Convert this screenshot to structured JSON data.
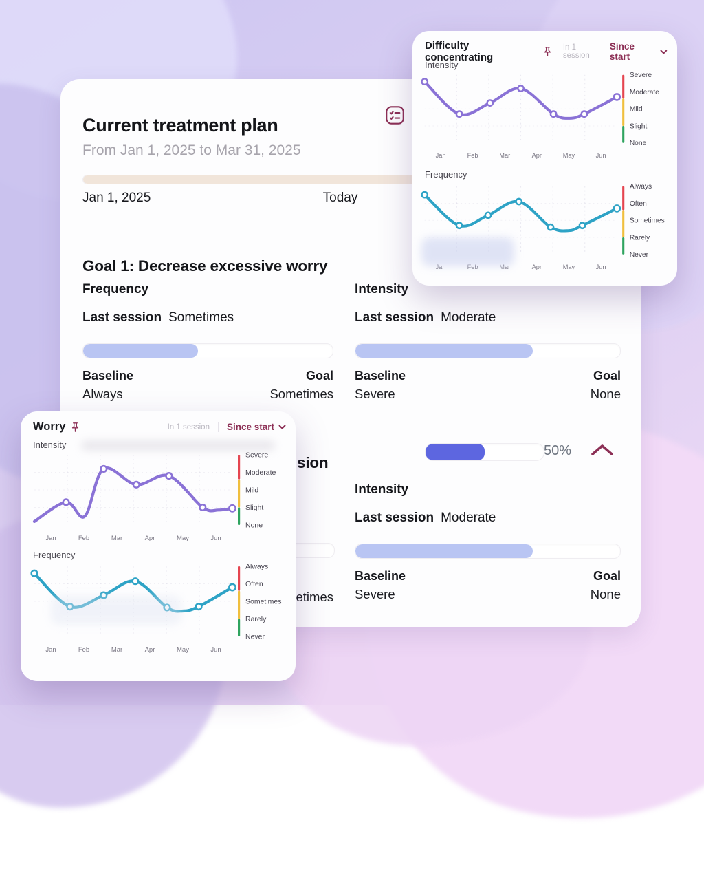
{
  "colors": {
    "accent_maroon": "#8C2F55",
    "line_purple": "#8A72D6",
    "line_teal": "#2EA3C6",
    "progress_periwinkle": "#B9C5F3",
    "progress_indigo": "#5D66E0",
    "timeline_beige": "#F1E5DA",
    "scale_red": "#E54550",
    "scale_yellow": "#F0BF3E",
    "scale_green": "#2FA45F"
  },
  "main_card": {
    "title": "Current treatment plan",
    "date_range": "From Jan 1, 2025 to  Mar 31, 2025",
    "timeline": {
      "progress_pct": 80,
      "start_label": "Jan 1, 2025",
      "today_label": "Today"
    },
    "goal1": {
      "heading": "Goal 1: Decrease excessive worry",
      "frequency": {
        "label": "Frequency",
        "last_session_label": "Last session",
        "last_session_value": "Sometimes",
        "progress_pct": 46,
        "baseline_label": "Baseline",
        "baseline_value": "Always",
        "goal_label": "Goal",
        "goal_value": "Sometimes"
      },
      "intensity": {
        "label": "Intensity",
        "last_session_label": "Last session",
        "last_session_value": "Moderate",
        "progress_pct": 67,
        "baseline_label": "Baseline",
        "baseline_value": "Severe",
        "goal_label": "Goal",
        "goal_value": "None"
      }
    },
    "goal2": {
      "heading_visible_fragment": "sion",
      "progress_pct": 50,
      "progress_label": "50%",
      "frequency_partial": {
        "progress_pct": 46,
        "goal_value": "Sometimes"
      },
      "intensity": {
        "label": "Intensity",
        "last_session_label": "Last session",
        "last_session_value": "Moderate",
        "progress_pct": 67,
        "baseline_label": "Baseline",
        "baseline_value": "Severe",
        "goal_label": "Goal",
        "goal_value": "None"
      }
    }
  },
  "worry_card": {
    "title": "Worry",
    "session_note": "In 1 session",
    "range_selector": "Since start",
    "intensity_label": "Intensity",
    "frequency_label": "Frequency"
  },
  "difficulty_card": {
    "title": "Difficulty concentrating",
    "session_note": "In 1 session",
    "range_selector": "Since start",
    "intensity_label": "Intensity",
    "frequency_label": "Frequency"
  },
  "chart_data": [
    {
      "id": "worry-intensity",
      "type": "line",
      "title": "Worry — Intensity",
      "color": "#8A72D6",
      "x_categories": [
        "Jan",
        "Feb",
        "Mar",
        "Apr",
        "May",
        "Jun"
      ],
      "y_levels": [
        "Severe",
        "Moderate",
        "Mild",
        "Slight",
        "None"
      ],
      "y_scale_note": "None=0 .. Severe=4",
      "points": [
        {
          "x": 0.0,
          "v": 0.2,
          "dot": false
        },
        {
          "x": 0.16,
          "v": 1.3
        },
        {
          "x": 0.255,
          "v": 0.5,
          "dot": false
        },
        {
          "x": 0.35,
          "v": 3.2
        },
        {
          "x": 0.515,
          "v": 2.3
        },
        {
          "x": 0.68,
          "v": 2.8
        },
        {
          "x": 0.85,
          "v": 1.0
        },
        {
          "x": 0.93,
          "v": 0.85,
          "dot": false
        },
        {
          "x": 1.0,
          "v": 0.95,
          "open": true
        }
      ]
    },
    {
      "id": "worry-frequency",
      "type": "line",
      "title": "Worry — Frequency",
      "color": "#2EA3C6",
      "x_categories": [
        "Jan",
        "Feb",
        "Mar",
        "Apr",
        "May",
        "Jun"
      ],
      "y_levels": [
        "Always",
        "Often",
        "Sometimes",
        "Rarely",
        "Never"
      ],
      "y_scale_note": "Never=0 .. Always=4",
      "points": [
        {
          "x": 0.0,
          "v": 3.6
        },
        {
          "x": 0.18,
          "v": 1.7
        },
        {
          "x": 0.35,
          "v": 2.35
        },
        {
          "x": 0.51,
          "v": 3.15
        },
        {
          "x": 0.67,
          "v": 1.65
        },
        {
          "x": 0.75,
          "v": 1.45,
          "dot": false
        },
        {
          "x": 0.83,
          "v": 1.7
        },
        {
          "x": 1.0,
          "v": 2.8,
          "open": true
        }
      ]
    },
    {
      "id": "difficulty-intensity",
      "type": "line",
      "title": "Difficulty concentrating — Intensity",
      "color": "#8A72D6",
      "x_categories": [
        "Jan",
        "Feb",
        "Mar",
        "Apr",
        "May",
        "Jun"
      ],
      "y_levels": [
        "Severe",
        "Moderate",
        "Mild",
        "Slight",
        "None"
      ],
      "y_scale_note": "None=0 .. Severe=4",
      "points": [
        {
          "x": 0.0,
          "v": 3.6
        },
        {
          "x": 0.18,
          "v": 1.7
        },
        {
          "x": 0.34,
          "v": 2.35
        },
        {
          "x": 0.5,
          "v": 3.2
        },
        {
          "x": 0.67,
          "v": 1.7
        },
        {
          "x": 0.755,
          "v": 1.45,
          "dot": false
        },
        {
          "x": 0.83,
          "v": 1.7
        },
        {
          "x": 1.0,
          "v": 2.7,
          "open": true
        }
      ]
    },
    {
      "id": "difficulty-frequency",
      "type": "line",
      "title": "Difficulty concentrating — Frequency",
      "color": "#2EA3C6",
      "x_categories": [
        "Jan",
        "Feb",
        "Mar",
        "Apr",
        "May",
        "Jun"
      ],
      "y_levels": [
        "Always",
        "Often",
        "Sometimes",
        "Rarely",
        "Never"
      ],
      "y_scale_note": "Never=0 .. Always=4",
      "points": [
        {
          "x": 0.0,
          "v": 3.5
        },
        {
          "x": 0.18,
          "v": 1.7
        },
        {
          "x": 0.33,
          "v": 2.3
        },
        {
          "x": 0.49,
          "v": 3.1
        },
        {
          "x": 0.655,
          "v": 1.6
        },
        {
          "x": 0.75,
          "v": 1.4,
          "dot": false
        },
        {
          "x": 0.82,
          "v": 1.7
        },
        {
          "x": 1.0,
          "v": 2.7,
          "open": true
        }
      ]
    }
  ]
}
